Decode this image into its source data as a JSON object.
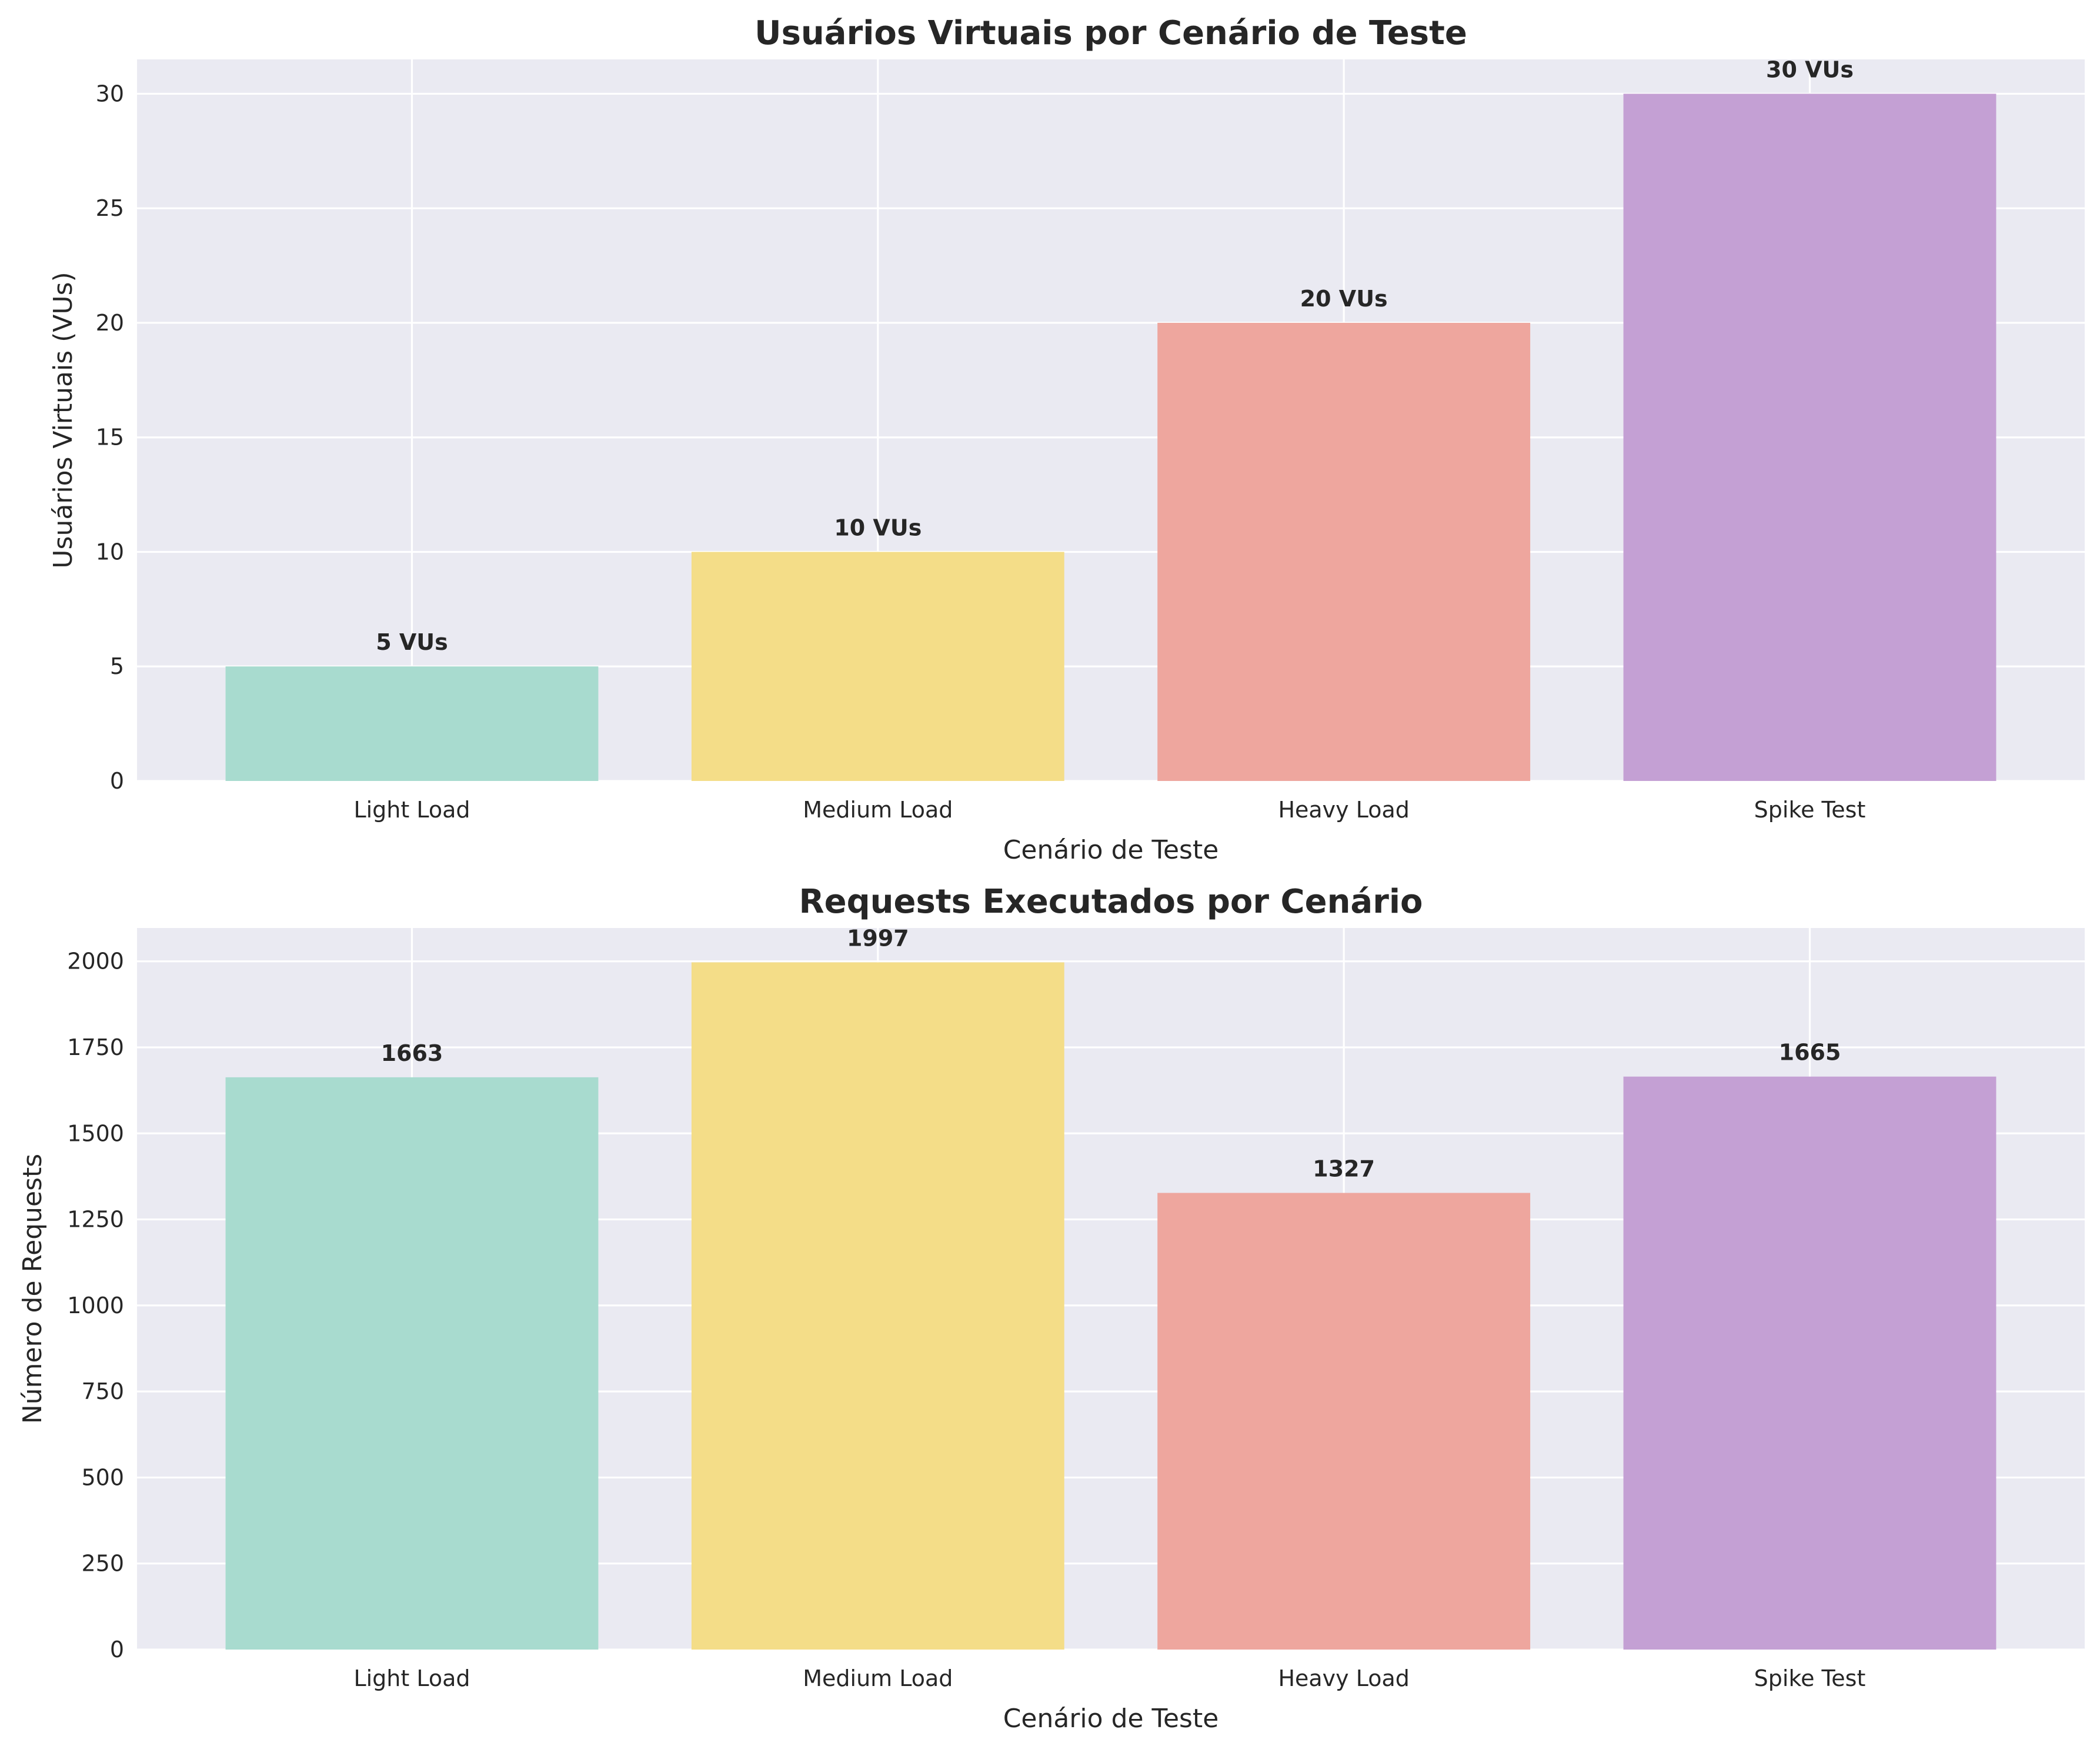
{
  "chart_data": [
    {
      "type": "bar",
      "title": "Usuários Virtuais por Cenário de Teste",
      "xlabel": "Cenário de Teste",
      "ylabel": "Usuários Virtuais (VUs)",
      "categories": [
        "Light Load",
        "Medium Load",
        "Heavy Load",
        "Spike Test"
      ],
      "values": [
        5,
        10,
        20,
        30
      ],
      "data_labels": [
        "5 VUs",
        "10 VUs",
        "20 VUs",
        "30 VUs"
      ],
      "ylim": [
        0,
        31.5
      ],
      "yticks": [
        "0",
        "5",
        "10",
        "15",
        "20",
        "25",
        "30"
      ],
      "grid": true,
      "colors": [
        "#a8dbcf",
        "#f4dd88",
        "#eea69e",
        "#c4a0d4"
      ],
      "background": "#eaeaf2"
    },
    {
      "type": "bar",
      "title": "Requests Executados por Cenário",
      "xlabel": "Cenário de Teste",
      "ylabel": "Número de Requests",
      "categories": [
        "Light Load",
        "Medium Load",
        "Heavy Load",
        "Spike Test"
      ],
      "values": [
        1663,
        1997,
        1327,
        1665
      ],
      "data_labels": [
        "1663",
        "1997",
        "1327",
        "1665"
      ],
      "ylim": [
        0,
        2096.85
      ],
      "yticks": [
        "0",
        "250",
        "500",
        "750",
        "1000",
        "1250",
        "1500",
        "1750",
        "2000"
      ],
      "grid": true,
      "colors": [
        "#a8dbcf",
        "#f4dd88",
        "#eea69e",
        "#c4a0d4"
      ],
      "background": "#eaeaf2"
    }
  ]
}
